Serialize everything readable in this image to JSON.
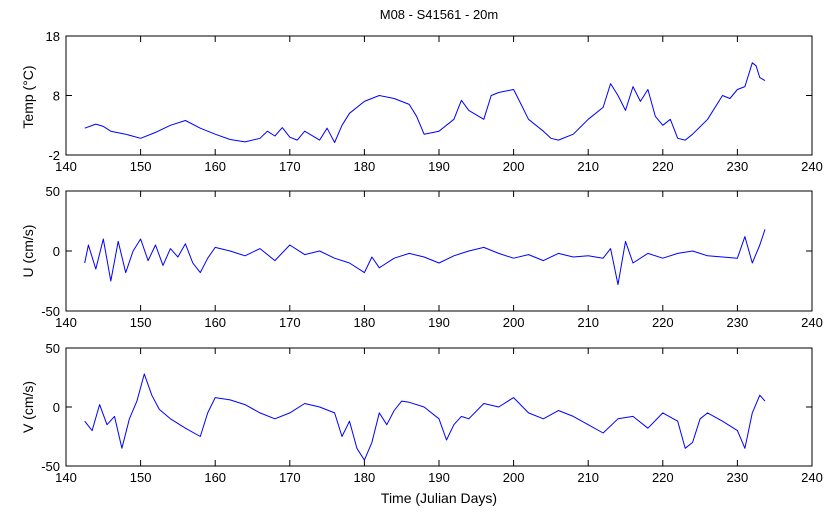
{
  "figure": {
    "title": "M08 - S41561 - 20m",
    "xlabel": "Time (Julian Days)"
  },
  "chart_data": [
    {
      "type": "line",
      "ylabel": "Temp (°C)",
      "xlim": [
        140,
        240
      ],
      "ylim": [
        -2,
        18
      ],
      "xticks": [
        140,
        150,
        160,
        170,
        180,
        190,
        200,
        210,
        220,
        230,
        240
      ],
      "yticks": [
        -2,
        8,
        18
      ],
      "grid": false,
      "series": [
        {
          "color": "#0000ff",
          "x": [
            142.5,
            144,
            145,
            146,
            148,
            150,
            152,
            154,
            156,
            158,
            160,
            162,
            164,
            166,
            167,
            168,
            169,
            170,
            171,
            172,
            174,
            175,
            176,
            177,
            178,
            180,
            182,
            184,
            186,
            187,
            188,
            190,
            192,
            193,
            194,
            196,
            197,
            198,
            200,
            201,
            202,
            204,
            205,
            206,
            208,
            210,
            212,
            213,
            214,
            215,
            216,
            217,
            218,
            219,
            220,
            221,
            222,
            223,
            224,
            226,
            228,
            229,
            230,
            231,
            232,
            232.5,
            233,
            233.7
          ],
          "y": [
            2.5,
            3.2,
            2.8,
            2,
            1.5,
            0.8,
            1.8,
            3.0,
            3.8,
            2.5,
            1.5,
            0.6,
            0.2,
            0.8,
            2.0,
            1.2,
            2.6,
            1.0,
            0.5,
            2.0,
            0.5,
            2.5,
            0.1,
            3.0,
            5.0,
            7.0,
            8.0,
            7.5,
            6.5,
            4.5,
            1.5,
            2.0,
            4.0,
            7.2,
            5.5,
            4.0,
            8.0,
            8.5,
            9.0,
            6.5,
            4.0,
            2.0,
            0.8,
            0.5,
            1.5,
            4.0,
            6.0,
            10.0,
            8.0,
            5.5,
            9.5,
            7.0,
            9.0,
            4.5,
            3.0,
            4.0,
            0.8,
            0.5,
            1.5,
            4.0,
            8.0,
            7.5,
            9.0,
            9.5,
            13.5,
            13.0,
            11.0,
            10.5
          ]
        }
      ]
    },
    {
      "type": "line",
      "ylabel": "U (cm/s)",
      "xlim": [
        140,
        240
      ],
      "ylim": [
        -50,
        50
      ],
      "xticks": [
        140,
        150,
        160,
        170,
        180,
        190,
        200,
        210,
        220,
        230,
        240
      ],
      "yticks": [
        -50,
        0,
        50
      ],
      "grid": false,
      "series": [
        {
          "color": "#0000ff",
          "x": [
            142.5,
            143,
            144,
            145,
            146,
            147,
            148,
            149,
            150,
            151,
            152,
            153,
            154,
            155,
            156,
            157,
            158,
            159,
            160,
            162,
            164,
            166,
            168,
            170,
            172,
            174,
            176,
            178,
            180,
            181,
            182,
            184,
            186,
            188,
            190,
            192,
            194,
            196,
            198,
            200,
            202,
            204,
            206,
            208,
            210,
            212,
            213,
            214,
            215,
            216,
            218,
            220,
            222,
            224,
            226,
            228,
            230,
            231,
            232,
            233,
            233.7
          ],
          "y": [
            -10,
            5,
            -15,
            10,
            -25,
            8,
            -18,
            0,
            10,
            -8,
            5,
            -12,
            2,
            -5,
            6,
            -10,
            -18,
            -6,
            3,
            0,
            -4,
            2,
            -8,
            5,
            -3,
            0,
            -6,
            -10,
            -18,
            -5,
            -14,
            -6,
            -2,
            -5,
            -10,
            -4,
            0,
            3,
            -2,
            -6,
            -3,
            -8,
            -2,
            -5,
            -4,
            -6,
            2,
            -28,
            8,
            -10,
            -2,
            -6,
            -2,
            0,
            -4,
            -5,
            -6,
            12,
            -10,
            5,
            18
          ]
        }
      ]
    },
    {
      "type": "line",
      "ylabel": "V (cm/s)",
      "xlim": [
        140,
        240
      ],
      "ylim": [
        -50,
        50
      ],
      "xticks": [
        140,
        150,
        160,
        170,
        180,
        190,
        200,
        210,
        220,
        230,
        240
      ],
      "yticks": [
        -50,
        0,
        50
      ],
      "grid": false,
      "series": [
        {
          "color": "#0000ff",
          "x": [
            142.5,
            143.5,
            144.5,
            145.5,
            146.5,
            147.5,
            148.5,
            149.5,
            150.5,
            151.5,
            152.5,
            154,
            156,
            158,
            159,
            160,
            162,
            164,
            166,
            168,
            170,
            172,
            174,
            176,
            177,
            178,
            179,
            180,
            181,
            182,
            183,
            184,
            185,
            186,
            188,
            190,
            191,
            192,
            193,
            194,
            196,
            198,
            200,
            202,
            204,
            206,
            208,
            210,
            212,
            214,
            216,
            218,
            220,
            222,
            223,
            224,
            225,
            226,
            228,
            230,
            231,
            232,
            233,
            233.7
          ],
          "y": [
            -12,
            -20,
            2,
            -15,
            -8,
            -35,
            -10,
            5,
            28,
            10,
            -2,
            -10,
            -18,
            -25,
            -5,
            8,
            6,
            2,
            -5,
            -10,
            -5,
            3,
            0,
            -5,
            -25,
            -12,
            -35,
            -45,
            -30,
            -5,
            -15,
            -3,
            5,
            4,
            0,
            -10,
            -28,
            -15,
            -8,
            -10,
            3,
            0,
            8,
            -5,
            -10,
            -3,
            -8,
            -15,
            -22,
            -10,
            -8,
            -18,
            -5,
            -12,
            -35,
            -30,
            -10,
            -5,
            -12,
            -20,
            -35,
            -5,
            10,
            5
          ]
        }
      ]
    }
  ]
}
